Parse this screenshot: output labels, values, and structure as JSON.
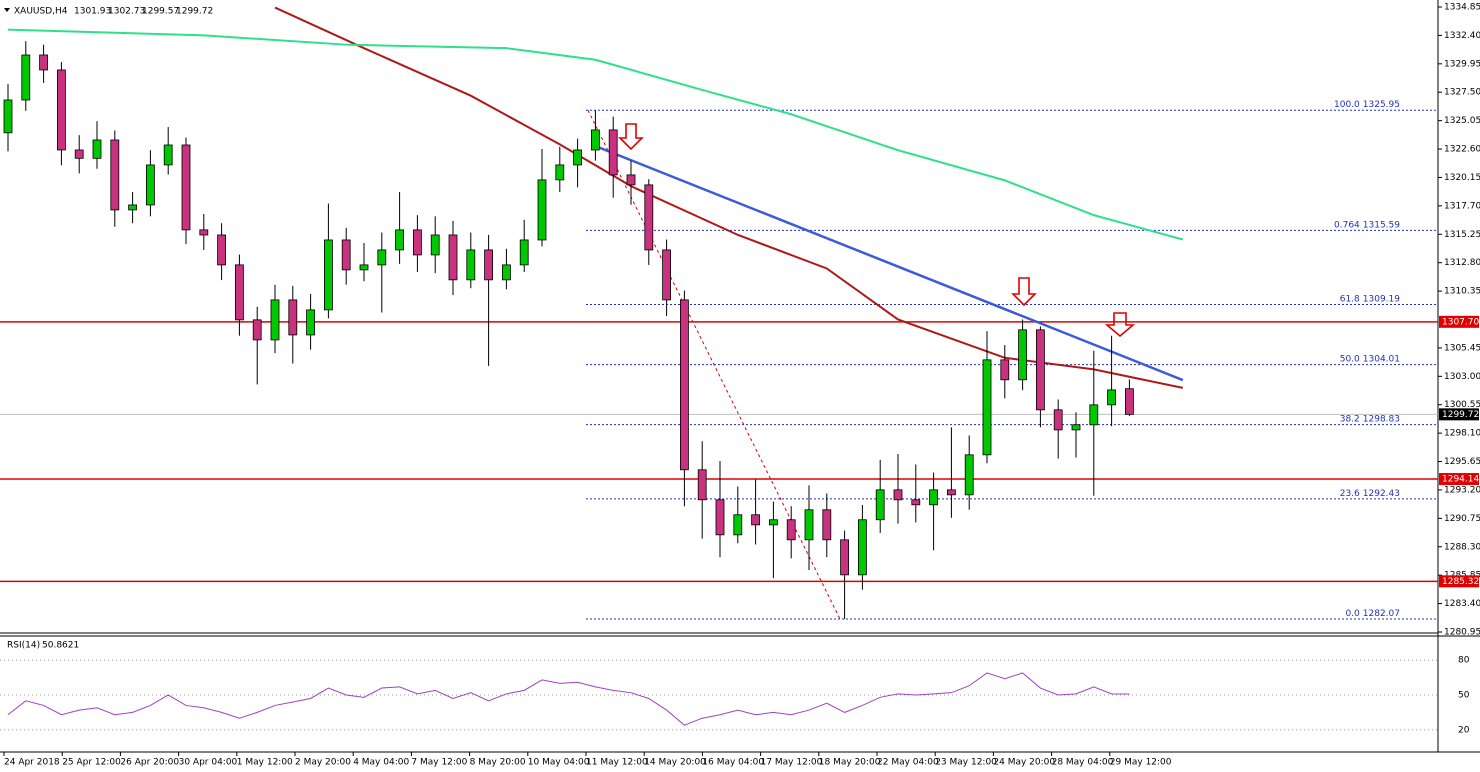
{
  "chart_data": {
    "type": "candlestick",
    "symbol": "XAUUSD,H4",
    "open": [
      1324.0,
      1326.83,
      1330.71,
      1329.42,
      1322.52,
      1321.8,
      1323.38,
      1317.35,
      1317.78,
      1321.23,
      1322.95,
      1315.63,
      1315.19,
      1312.61,
      1307.87,
      1306.14,
      1309.59,
      1306.57,
      1308.73,
      1314.76,
      1312.18,
      1312.61,
      1313.9,
      1315.63,
      1313.47,
      1315.19,
      1311.32,
      1313.9,
      1311.32,
      1312.61,
      1314.76,
      1319.94,
      1321.23,
      1322.52,
      1324.25,
      1320.37,
      1319.51,
      1313.9,
      1309.59,
      1294.94,
      1292.35,
      1289.33,
      1291.06,
      1290.19,
      1290.63,
      1288.9,
      1291.49,
      1288.9,
      1285.88,
      1290.63,
      1293.21,
      1292.35,
      1291.92,
      1293.21,
      1292.78,
      1296.23,
      1304.42,
      1302.7,
      1307.01,
      1300.11,
      1298.38,
      1298.82,
      1300.54,
      1301.93
    ],
    "high": [
      1328.2,
      1331.9,
      1331.6,
      1330.1,
      1323.8,
      1325.0,
      1324.2,
      1318.9,
      1322.5,
      1324.5,
      1323.6,
      1317.0,
      1316.2,
      1313.5,
      1309.0,
      1310.9,
      1310.8,
      1310.1,
      1317.9,
      1315.8,
      1314.5,
      1315.4,
      1318.9,
      1316.9,
      1316.8,
      1316.4,
      1315.4,
      1315.2,
      1314.0,
      1316.5,
      1322.6,
      1322.8,
      1323.5,
      1325.95,
      1325.4,
      1321.6,
      1320.0,
      1314.8,
      1310.4,
      1297.4,
      1295.7,
      1293.5,
      1294.1,
      1292.2,
      1291.8,
      1293.6,
      1292.9,
      1289.7,
      1291.9,
      1295.8,
      1296.3,
      1295.4,
      1294.7,
      1298.6,
      1297.9,
      1306.9,
      1305.7,
      1307.9,
      1307.3,
      1301.0,
      1299.9,
      1305.2,
      1306.5,
      1302.73
    ],
    "low": [
      1322.4,
      1325.9,
      1328.3,
      1321.2,
      1320.5,
      1320.9,
      1315.9,
      1316.2,
      1316.8,
      1320.4,
      1314.4,
      1313.9,
      1311.3,
      1306.5,
      1302.3,
      1305.0,
      1304.1,
      1305.3,
      1308.0,
      1310.9,
      1311.2,
      1308.5,
      1312.7,
      1312.0,
      1311.9,
      1310.0,
      1310.6,
      1303.9,
      1310.5,
      1312.0,
      1314.2,
      1318.9,
      1319.3,
      1321.6,
      1318.4,
      1317.8,
      1312.6,
      1308.2,
      1291.8,
      1289.0,
      1287.4,
      1288.6,
      1288.5,
      1285.6,
      1287.3,
      1286.3,
      1287.4,
      1282.07,
      1284.6,
      1289.5,
      1290.3,
      1290.4,
      1288.0,
      1290.8,
      1291.5,
      1295.5,
      1301.1,
      1301.8,
      1298.6,
      1295.9,
      1296.0,
      1292.7,
      1298.7,
      1299.57
    ],
    "close": [
      1326.83,
      1330.71,
      1329.42,
      1322.52,
      1321.8,
      1323.38,
      1317.35,
      1317.78,
      1321.23,
      1322.95,
      1315.63,
      1315.19,
      1312.61,
      1307.87,
      1306.14,
      1309.59,
      1306.57,
      1308.73,
      1314.76,
      1312.18,
      1312.61,
      1313.9,
      1315.63,
      1313.47,
      1315.19,
      1311.32,
      1313.9,
      1311.32,
      1312.61,
      1314.76,
      1319.94,
      1321.23,
      1322.52,
      1324.25,
      1320.37,
      1319.51,
      1313.9,
      1309.59,
      1294.94,
      1292.35,
      1289.33,
      1291.06,
      1290.19,
      1290.63,
      1288.9,
      1291.49,
      1288.9,
      1285.88,
      1290.63,
      1293.21,
      1292.35,
      1291.92,
      1293.21,
      1292.78,
      1296.23,
      1304.42,
      1302.7,
      1307.01,
      1300.11,
      1298.38,
      1298.82,
      1300.54,
      1301.83,
      1299.72
    ],
    "bull_color": "#00c800",
    "bear_color": "#c8327f",
    "moving_averages": [
      {
        "color": "#b01818",
        "x": [
          15,
          20,
          26,
          31,
          35,
          41,
          46,
          50,
          56,
          61,
          66
        ],
        "values": [
          1334.8,
          1331.3,
          1327.2,
          1323.0,
          1319.4,
          1315.2,
          1312.3,
          1307.9,
          1304.6,
          1303.6,
          1302.0
        ]
      },
      {
        "color": "#2ee08a",
        "x": [
          0,
          11,
          19,
          28,
          33,
          39,
          44,
          50,
          56,
          61,
          66
        ],
        "values": [
          1332.9,
          1332.4,
          1331.6,
          1331.3,
          1330.3,
          1327.7,
          1325.6,
          1322.5,
          1319.9,
          1316.9,
          1314.8
        ]
      }
    ],
    "trendline": {
      "color": "#3b5bdb",
      "x": [
        33,
        66
      ],
      "values": [
        1322.86,
        1302.68
      ]
    },
    "ylim": [
      1280.95,
      1334.85
    ],
    "yticks": [
      1334.85,
      {
        "value": 1332.4,
        "label": "1332.40"
      },
      1329.95,
      {
        "value": 1327.5,
        "label": "1327.50"
      },
      1325.05,
      {
        "value": 1322.6,
        "label": "1322.60"
      },
      1320.15,
      {
        "value": 1317.7,
        "label": "1317.70"
      },
      1315.25,
      {
        "value": 1312.8,
        "label": "1312.80"
      },
      1310.35,
      1305.45,
      {
        "value": 1303,
        "label": "1303.00"
      },
      1300.55,
      {
        "value": 1298.1,
        "label": "1298.10"
      },
      1295.65,
      {
        "value": 1293.2,
        "label": "1293.20"
      },
      1290.75,
      {
        "value": 1288.3,
        "label": "1288.30"
      },
      1285.85,
      {
        "value": 1283.4,
        "label": "1283.40"
      },
      1280.95
    ],
    "levels": [
      {
        "value": 1307.7,
        "label": "1307.70"
      },
      1294.14,
      1285.32
    ],
    "level_color": "#e00000",
    "fibonacci": [
      {
        "level": "100.0",
        "price": 1325.95
      },
      {
        "level": "0.764",
        "price": 1315.59
      },
      {
        "level": "61.8",
        "price": 1309.19
      },
      {
        "level": "50.0",
        "price": 1304.01
      },
      {
        "level": "38.2",
        "price": 1298.83
      },
      {
        "level": "23.6",
        "price": 1292.43
      },
      {
        "level": "0.0",
        "price": 1282.07
      }
    ],
    "fib_color": "#2030c0",
    "rsi": {
      "name": "RSI(14)",
      "color": "#a040c8",
      "ylim": [
        0,
        100
      ],
      "yticks": [
        80,
        50,
        20
      ],
      "values": [
        33,
        45,
        41,
        33,
        37,
        39,
        33,
        35,
        41,
        50,
        41,
        39,
        35,
        30,
        35,
        41,
        44,
        47,
        56,
        50,
        48,
        56,
        57,
        51,
        54,
        47,
        52,
        45,
        51,
        54,
        63,
        60,
        61,
        57,
        54,
        52,
        47,
        37,
        24,
        30,
        33,
        37,
        33,
        35,
        33,
        37,
        43,
        35,
        41,
        48,
        51,
        50,
        51,
        52,
        58,
        69,
        64,
        69,
        56,
        50,
        51,
        57,
        51,
        50.8621
      ]
    },
    "time_labels": [
      "24 Apr 2018",
      "25 Apr 12:00",
      "26 Apr 20:00",
      "30 Apr 04:00",
      "1 May 12:00",
      "2 May 20:00",
      "4 May 04:00",
      "7 May 12:00",
      "8 May 20:00",
      "10 May 04:00",
      "11 May 12:00",
      "14 May 20:00",
      "16 May 04:00",
      "17 May 12:00",
      "18 May 20:00",
      "22 May 04:00",
      "23 May 12:00",
      "24 May 20:00",
      "28 May 04:00",
      "29 May 12:00"
    ]
  }
}
